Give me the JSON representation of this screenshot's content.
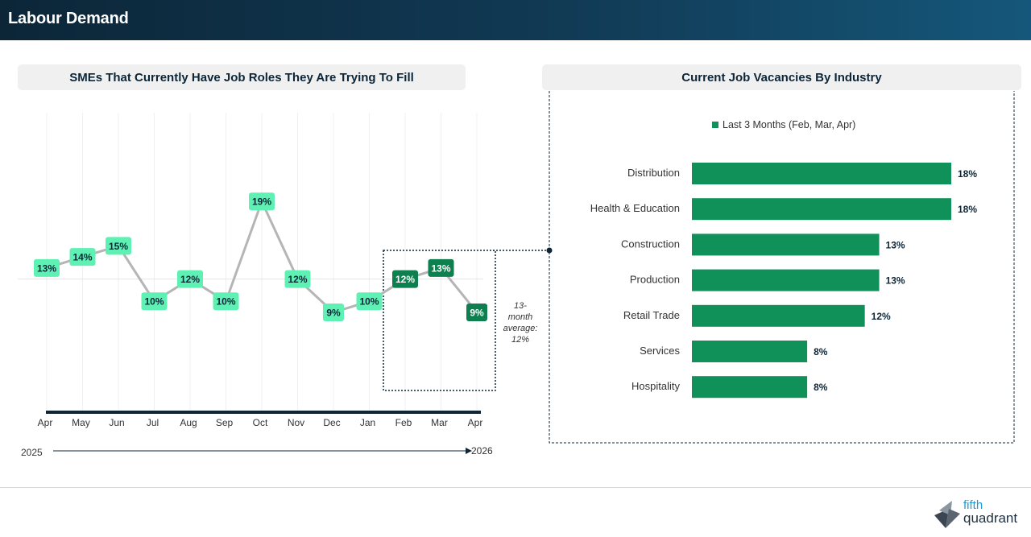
{
  "header": {
    "title": "Labour Demand"
  },
  "left_panel": {
    "title": "SMEs That Currently Have Job Roles They Are Trying To Fill",
    "year_start": "2025",
    "year_end": "2026",
    "average_note": [
      "13-",
      "month",
      "average:",
      "12%"
    ]
  },
  "right_panel": {
    "title": "Current Job Vacancies By Industry"
  },
  "colors": {
    "line": "#b5b5b5",
    "label_light": "#5ff0b4",
    "label_dark": "#0e7f4e",
    "bar": "#0f9159",
    "axis": "#0c2638",
    "average_line": "#e4e4e4"
  },
  "chart_data": [
    {
      "type": "line",
      "title": "SMEs That Currently Have Job Roles They Are Trying To Fill",
      "categories": [
        "Apr",
        "May",
        "Jun",
        "Jul",
        "Aug",
        "Sep",
        "Oct",
        "Nov",
        "Dec",
        "Jan",
        "Feb",
        "Mar",
        "Apr"
      ],
      "values": [
        13,
        14,
        15,
        10,
        12,
        10,
        19,
        12,
        9,
        10,
        12,
        13,
        9
      ],
      "data_labels": [
        "13%",
        "14%",
        "15%",
        "10%",
        "12%",
        "10%",
        "19%",
        "12%",
        "9%",
        "10%",
        "12%",
        "13%",
        "9%"
      ],
      "highlighted_last": 3,
      "average": 12,
      "ylim": [
        0,
        27
      ],
      "grid": "vertical"
    },
    {
      "type": "bar",
      "orientation": "horizontal",
      "title": "Current Job Vacancies By Industry",
      "legend": "Last 3 Months (Feb, Mar, Apr)",
      "legend_position": "top",
      "categories": [
        "Distribution",
        "Health & Education",
        "Construction",
        "Production",
        "Retail Trade",
        "Services",
        "Hospitality"
      ],
      "values": [
        18,
        18,
        13,
        13,
        12,
        8,
        8
      ],
      "data_labels": [
        "18%",
        "18%",
        "13%",
        "13%",
        "12%",
        "8%",
        "8%"
      ],
      "xlim": [
        0,
        18
      ]
    }
  ],
  "logo": {
    "line1": "fifth",
    "line2": "quadrant"
  }
}
